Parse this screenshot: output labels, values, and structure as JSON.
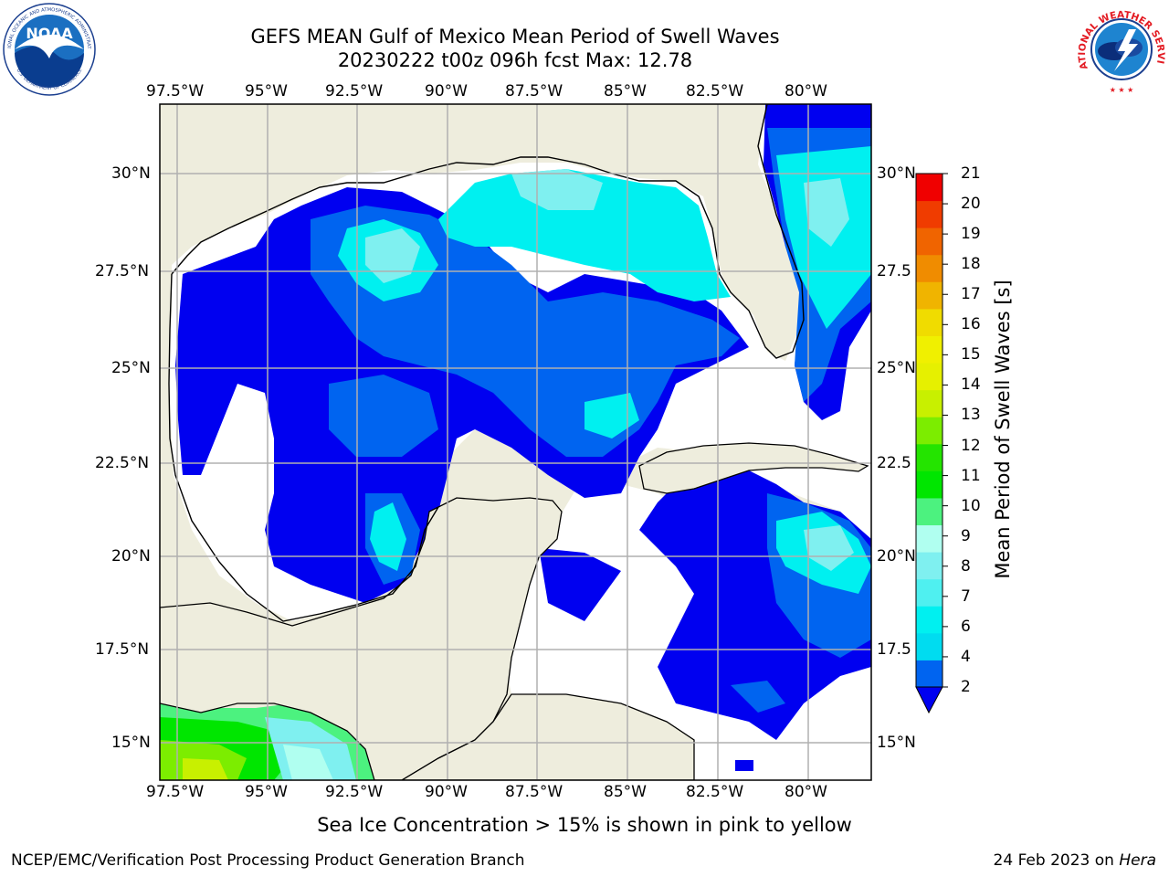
{
  "title": {
    "line1": "GEFS MEAN Gulf of Mexico Mean Period of Swell Waves",
    "line2": "20230222 t00z 096h fcst   Max: 12.78"
  },
  "map": {
    "lon_ticks_top": [
      "97.5°W",
      "95°W",
      "92.5°W",
      "90°W",
      "87.5°W",
      "85°W",
      "82.5°W",
      "80°W"
    ],
    "lon_ticks_bottom": [
      "97.5°W",
      "95°W",
      "92.5°W",
      "90°W",
      "87.5°W",
      "85°W",
      "82.5°W",
      "80°W"
    ],
    "lat_ticks_left": [
      "30°N",
      "27.5°N",
      "25°N",
      "22.5°N",
      "20°N",
      "17.5°N",
      "15°N"
    ],
    "lat_ticks_right": [
      "30°N",
      "27.5",
      "25°N",
      "22.5",
      "20°N",
      "17.5",
      "15°N"
    ],
    "lon_range": [
      -98,
      -78.3
    ],
    "lat_range": [
      14,
      31.7
    ],
    "colors": {
      "land": "#eeeddd",
      "ocean_nodata": "#ffffff",
      "grid": "#b0b0b0"
    }
  },
  "colorbar": {
    "label": "Mean Period of Swell Waves [s]",
    "ticks": [
      "21",
      "20",
      "19",
      "18",
      "17",
      "16",
      "15",
      "14",
      "13",
      "12",
      "11",
      "10",
      "9",
      "8",
      "7",
      "6",
      "4",
      "2"
    ],
    "levels": [
      2,
      4,
      5,
      6,
      7,
      8,
      9,
      10,
      11,
      12,
      13,
      14,
      15,
      16,
      17,
      18,
      19,
      20,
      21
    ],
    "colors": [
      "#0064f0",
      "#00dcf0",
      "#00f0f0",
      "#4ff0f0",
      "#7ff0f0",
      "#b0fff0",
      "#4cf27f",
      "#00e600",
      "#24e400",
      "#7ced00",
      "#c8f000",
      "#e6f000",
      "#f0f000",
      "#f0dc00",
      "#f0b400",
      "#f08c00",
      "#f06400",
      "#f03c00",
      "#f00000"
    ],
    "under_color": "#0000f0"
  },
  "note": "Sea Ice Concentration > 15% is shown in pink to yellow",
  "footer": {
    "credit": "NCEP/EMC/Verification Post Processing Product Generation Branch",
    "date": "24 Feb 2023 on",
    "host": "Hera"
  },
  "logos": {
    "noaa_text": "NOAA",
    "noaa_ring_top": "NATIONAL OCEANIC AND ATMOSPHERIC ADMINISTRATION",
    "noaa_ring_bottom": "U.S. DEPARTMENT OF COMMERCE",
    "nws_ring": "NATIONAL WEATHER SERVICE"
  }
}
